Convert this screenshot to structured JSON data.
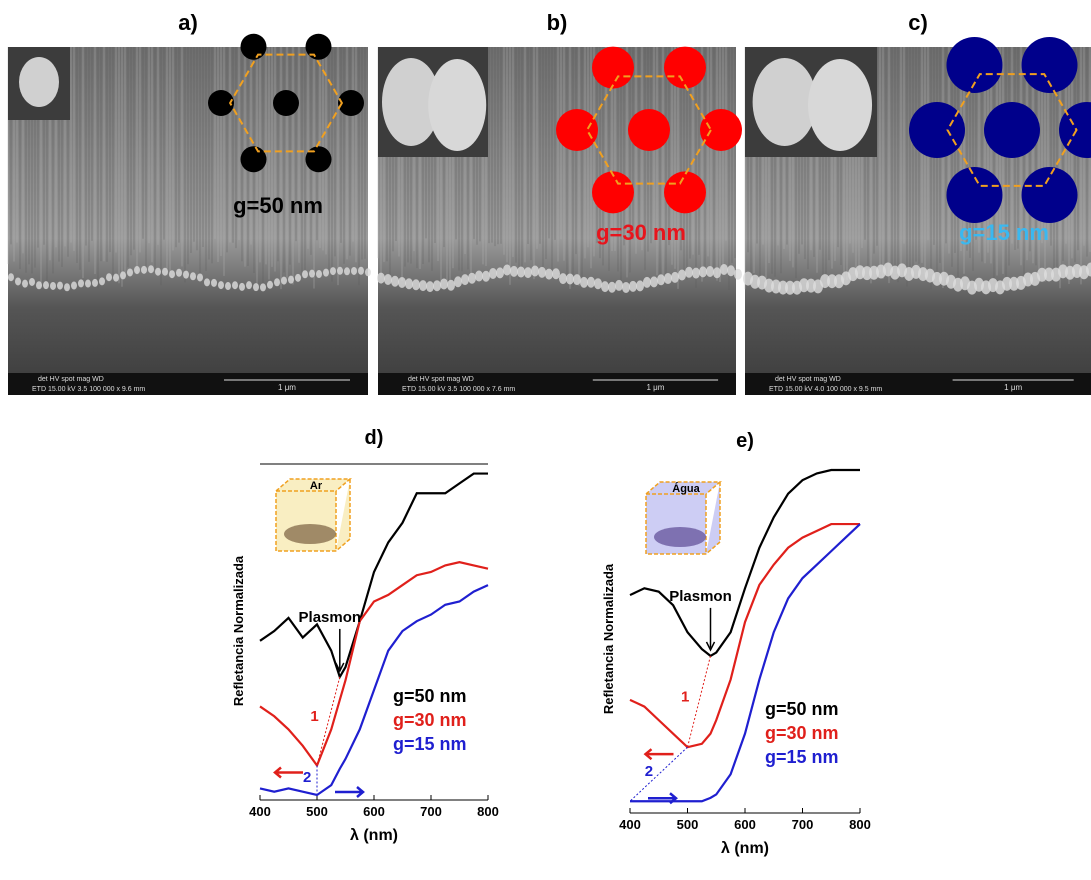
{
  "panels": [
    {
      "label": "a)",
      "gap": "g=50 nm",
      "scale": "1 μm",
      "info_header": "det HV spot mag WD",
      "info": "ETD 15.00 kV 3.5 100 000 x 9.6 mm"
    },
    {
      "label": "b)",
      "gap": "g=30 nm",
      "scale": "1 μm",
      "info_header": "det HV spot mag WD",
      "info": "ETD 15.00 kV 3.5 100 000 x 7.6 mm"
    },
    {
      "label": "c)",
      "gap": "g=15 nm",
      "scale": "1 μm",
      "info_header": "det HV spot mag WD",
      "info": "ETD 15.00 kV 4.0 100 000 x 9.5 mm"
    }
  ],
  "chart_data": [
    {
      "type": "line",
      "label": "d)",
      "x_label": "λ (nm)",
      "y_label": "Refletancia Normalizada",
      "medium": "Ar",
      "annotations": [
        "Plasmon",
        "1",
        "2"
      ],
      "x": [
        400,
        425,
        450,
        475,
        500,
        525,
        540,
        550,
        575,
        600,
        625,
        650,
        675,
        700,
        725,
        750,
        775,
        800
      ],
      "xlim": [
        400,
        800
      ],
      "xticks": [
        400,
        500,
        600,
        700,
        800
      ],
      "ylim": [
        0,
        1
      ],
      "series": [
        {
          "name": "g=50 nm",
          "color": "#000000",
          "values": [
            0.47,
            0.5,
            0.54,
            0.48,
            0.52,
            0.44,
            0.36,
            0.39,
            0.53,
            0.68,
            0.77,
            0.83,
            0.92,
            0.92,
            0.92,
            0.95,
            0.98,
            0.98
          ]
        },
        {
          "name": "g=30 nm",
          "color": "#e0201b",
          "values": [
            0.27,
            0.24,
            0.2,
            0.15,
            0.09,
            0.2,
            0.29,
            0.35,
            0.53,
            0.59,
            0.61,
            0.64,
            0.67,
            0.68,
            0.7,
            0.71,
            0.7,
            0.69
          ]
        },
        {
          "name": "g=15 nm",
          "color": "#1f1fd0",
          "values": [
            0.02,
            0.01,
            0.02,
            0.01,
            0.0,
            0.03,
            0.08,
            0.11,
            0.2,
            0.32,
            0.44,
            0.5,
            0.53,
            0.55,
            0.58,
            0.59,
            0.62,
            0.64
          ]
        }
      ]
    },
    {
      "type": "line",
      "label": "e)",
      "x_label": "λ (nm)",
      "y_label": "Refletancia Normalizada",
      "medium": "Água",
      "annotations": [
        "Plasmon",
        "1",
        "2"
      ],
      "x": [
        400,
        425,
        450,
        475,
        500,
        525,
        540,
        550,
        575,
        600,
        625,
        650,
        675,
        700,
        725,
        750,
        775,
        800
      ],
      "xlim": [
        400,
        800
      ],
      "xticks": [
        400,
        500,
        600,
        700,
        800
      ],
      "ylim": [
        0,
        1
      ],
      "series": [
        {
          "name": "g=50 nm",
          "color": "#000000",
          "values": [
            0.63,
            0.65,
            0.64,
            0.6,
            0.52,
            0.47,
            0.45,
            0.46,
            0.52,
            0.65,
            0.77,
            0.86,
            0.93,
            0.97,
            0.99,
            1,
            1,
            1
          ]
        },
        {
          "name": "g=30 nm",
          "color": "#e0201b",
          "values": [
            0.32,
            0.3,
            0.26,
            0.22,
            0.18,
            0.19,
            0.22,
            0.26,
            0.38,
            0.55,
            0.66,
            0.72,
            0.77,
            0.8,
            0.82,
            0.84,
            0.84,
            0.84
          ]
        },
        {
          "name": "g=15 nm",
          "color": "#1f1fd0",
          "values": [
            0.02,
            0.02,
            0.02,
            0.02,
            0.02,
            0.02,
            0.03,
            0.04,
            0.1,
            0.22,
            0.38,
            0.52,
            0.62,
            0.68,
            0.72,
            0.76,
            0.8,
            0.84
          ]
        }
      ]
    }
  ]
}
